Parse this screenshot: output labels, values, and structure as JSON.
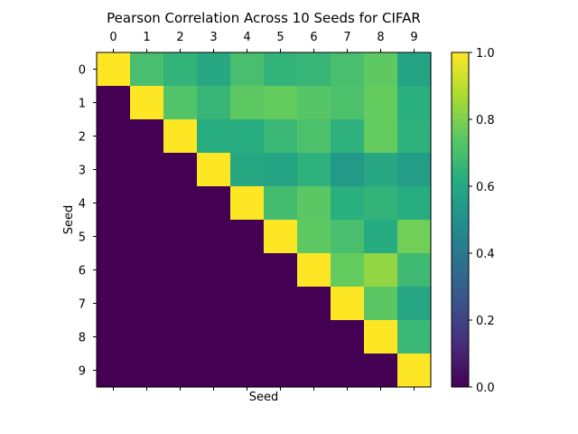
{
  "chart_data": {
    "type": "heatmap",
    "title": "Pearson Correlation Across 10 Seeds for CIFAR",
    "xlabel": "Seed",
    "ylabel": "Seed",
    "x_ticks": [
      "0",
      "1",
      "2",
      "3",
      "4",
      "5",
      "6",
      "7",
      "8",
      "9"
    ],
    "y_ticks": [
      "0",
      "1",
      "2",
      "3",
      "4",
      "5",
      "6",
      "7",
      "8",
      "9"
    ],
    "colormap": "viridis",
    "vmin": 0.0,
    "vmax": 1.0,
    "colorbar_ticks": [
      "0.0",
      "0.2",
      "0.4",
      "0.6",
      "0.8",
      "1.0"
    ],
    "matrix": [
      [
        1.0,
        0.7,
        0.65,
        0.6,
        0.7,
        0.65,
        0.66,
        0.7,
        0.75,
        0.58
      ],
      [
        0.0,
        1.0,
        0.72,
        0.66,
        0.75,
        0.76,
        0.73,
        0.71,
        0.76,
        0.63
      ],
      [
        0.0,
        0.0,
        1.0,
        0.62,
        0.62,
        0.67,
        0.71,
        0.64,
        0.76,
        0.64
      ],
      [
        0.0,
        0.0,
        0.0,
        1.0,
        0.6,
        0.58,
        0.64,
        0.54,
        0.6,
        0.55
      ],
      [
        0.0,
        0.0,
        0.0,
        0.0,
        1.0,
        0.69,
        0.74,
        0.63,
        0.65,
        0.62
      ],
      [
        0.0,
        0.0,
        0.0,
        0.0,
        0.0,
        1.0,
        0.75,
        0.7,
        0.61,
        0.78
      ],
      [
        0.0,
        0.0,
        0.0,
        0.0,
        0.0,
        0.0,
        1.0,
        0.76,
        0.83,
        0.68
      ],
      [
        0.0,
        0.0,
        0.0,
        0.0,
        0.0,
        0.0,
        0.0,
        1.0,
        0.74,
        0.59
      ],
      [
        0.0,
        0.0,
        0.0,
        0.0,
        0.0,
        0.0,
        0.0,
        0.0,
        1.0,
        0.67
      ],
      [
        0.0,
        0.0,
        0.0,
        0.0,
        0.0,
        0.0,
        0.0,
        0.0,
        0.0,
        1.0
      ]
    ]
  }
}
